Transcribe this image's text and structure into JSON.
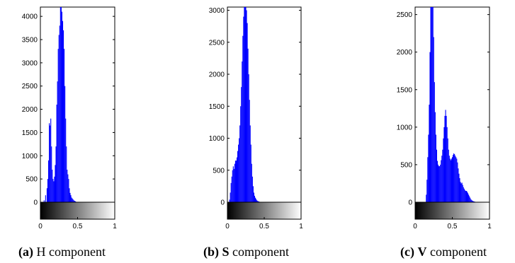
{
  "captions": [
    {
      "letter": "(a)",
      "channel": "H",
      "channel_bold": false,
      "word": "component"
    },
    {
      "letter": "(b)",
      "channel": "S",
      "channel_bold": true,
      "word": "component"
    },
    {
      "letter": "(c)",
      "channel": "V",
      "channel_bold": true,
      "word": "component"
    }
  ],
  "chart_data": [
    {
      "type": "bar",
      "title": "",
      "xlabel": "",
      "ylabel": "",
      "xlim": [
        0,
        1
      ],
      "ylim": [
        0,
        4200
      ],
      "xticks": [
        "0",
        "0.5",
        "1"
      ],
      "yticks": [
        "0",
        "500",
        "1000",
        "1500",
        "2000",
        "2500",
        "3000",
        "3500",
        "4000"
      ],
      "ytick_values": [
        0,
        500,
        1000,
        1500,
        2000,
        2500,
        3000,
        3500,
        4000
      ],
      "series_color": "#0000ff",
      "colorbar": "black-to-white grayscale",
      "x": [
        0.05,
        0.07,
        0.09,
        0.1,
        0.11,
        0.12,
        0.13,
        0.14,
        0.15,
        0.16,
        0.17,
        0.18,
        0.19,
        0.2,
        0.21,
        0.22,
        0.23,
        0.24,
        0.25,
        0.26,
        0.27,
        0.28,
        0.29,
        0.3,
        0.31,
        0.32,
        0.33,
        0.34,
        0.35,
        0.36,
        0.37,
        0.38,
        0.39,
        0.4,
        0.41,
        0.42,
        0.43,
        0.44,
        0.45,
        0.46,
        0.47,
        0.48,
        0.5
      ],
      "values": [
        40,
        150,
        300,
        500,
        900,
        1700,
        1650,
        1800,
        1200,
        700,
        500,
        450,
        550,
        800,
        1200,
        2100,
        2600,
        3300,
        3600,
        3800,
        4200,
        4200,
        4100,
        3900,
        3700,
        3300,
        2500,
        1800,
        1200,
        700,
        600,
        500,
        300,
        200,
        150,
        100,
        80,
        60,
        40,
        30,
        20,
        10,
        0
      ]
    },
    {
      "type": "bar",
      "title": "",
      "xlabel": "",
      "ylabel": "",
      "xlim": [
        0,
        1
      ],
      "ylim": [
        0,
        3050
      ],
      "xticks": [
        "0",
        "0.5",
        "1"
      ],
      "yticks": [
        "0",
        "500",
        "1000",
        "1500",
        "2000",
        "2500",
        "3000"
      ],
      "ytick_values": [
        0,
        500,
        1000,
        1500,
        2000,
        2500,
        3000
      ],
      "series_color": "#0000ff",
      "colorbar": "black-to-white grayscale",
      "x": [
        0.03,
        0.04,
        0.05,
        0.06,
        0.07,
        0.08,
        0.09,
        0.1,
        0.11,
        0.12,
        0.13,
        0.14,
        0.15,
        0.16,
        0.17,
        0.18,
        0.19,
        0.2,
        0.21,
        0.22,
        0.23,
        0.24,
        0.25,
        0.26,
        0.27,
        0.28,
        0.29,
        0.3,
        0.31,
        0.32,
        0.33,
        0.34,
        0.35,
        0.36,
        0.37,
        0.38,
        0.39,
        0.4,
        0.41,
        0.42,
        0.43,
        0.44,
        0.45
      ],
      "values": [
        40,
        150,
        300,
        400,
        500,
        560,
        520,
        600,
        650,
        650,
        700,
        800,
        900,
        1000,
        1200,
        1500,
        1800,
        2200,
        2600,
        2900,
        3050,
        3050,
        3050,
        3000,
        2800,
        2400,
        2000,
        1600,
        1200,
        900,
        600,
        400,
        250,
        150,
        100,
        70,
        50,
        30,
        20,
        15,
        10,
        5,
        0
      ]
    },
    {
      "type": "bar",
      "title": "",
      "xlabel": "",
      "ylabel": "",
      "xlim": [
        0,
        1
      ],
      "ylim": [
        0,
        2600
      ],
      "xticks": [
        "0",
        "0.5",
        "1"
      ],
      "yticks": [
        "0",
        "500",
        "1000",
        "1500",
        "2000",
        "2500"
      ],
      "ytick_values": [
        0,
        500,
        1000,
        1500,
        2000,
        2500
      ],
      "series_color": "#0000ff",
      "colorbar": "black-to-white grayscale",
      "x": [
        0.15,
        0.16,
        0.17,
        0.18,
        0.19,
        0.2,
        0.21,
        0.22,
        0.23,
        0.24,
        0.25,
        0.26,
        0.27,
        0.28,
        0.29,
        0.3,
        0.31,
        0.32,
        0.33,
        0.34,
        0.35,
        0.36,
        0.37,
        0.38,
        0.39,
        0.4,
        0.41,
        0.42,
        0.43,
        0.44,
        0.45,
        0.46,
        0.47,
        0.48,
        0.49,
        0.5,
        0.51,
        0.52,
        0.53,
        0.54,
        0.55,
        0.56,
        0.57,
        0.58,
        0.59,
        0.6,
        0.61,
        0.62,
        0.63,
        0.64,
        0.65,
        0.66,
        0.67,
        0.68,
        0.69,
        0.7,
        0.71,
        0.72,
        0.73,
        0.74,
        0.75,
        0.76,
        0.77,
        0.78,
        0.79,
        0.8,
        0.81,
        0.82,
        0.83,
        0.84,
        0.85
      ],
      "values": [
        100,
        300,
        600,
        900,
        1300,
        2000,
        2600,
        2600,
        2600,
        2600,
        2200,
        1600,
        1200,
        900,
        700,
        550,
        500,
        480,
        480,
        500,
        560,
        620,
        700,
        850,
        1000,
        1150,
        1230,
        1150,
        1000,
        850,
        700,
        620,
        580,
        560,
        580,
        600,
        630,
        650,
        640,
        620,
        600,
        580,
        530,
        450,
        380,
        320,
        270,
        250,
        260,
        230,
        200,
        180,
        160,
        150,
        150,
        140,
        120,
        100,
        80,
        60,
        40,
        30,
        20,
        15,
        10,
        8,
        5,
        3,
        2,
        1,
        0
      ]
    }
  ]
}
